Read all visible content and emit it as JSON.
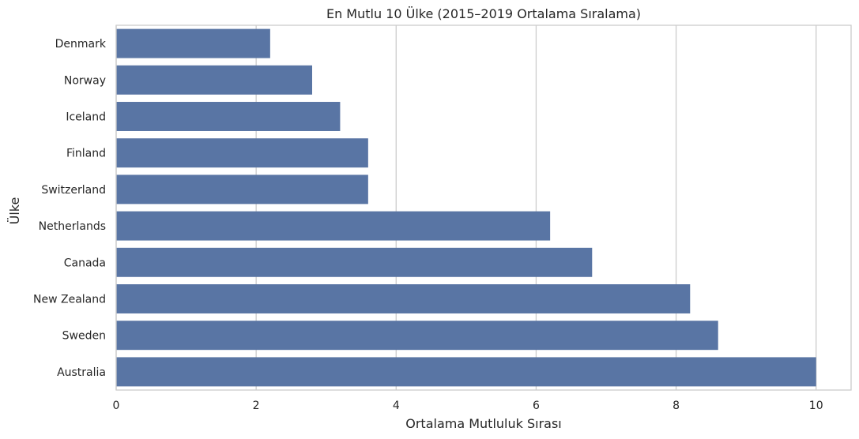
{
  "chart_data": {
    "type": "bar",
    "orientation": "horizontal",
    "title": "En Mutlu 10 Ülke (2015–2019 Ortalama Sıralama)",
    "xlabel": "Ortalama Mutluluk Sırası",
    "ylabel": "Ülke",
    "categories": [
      "Denmark",
      "Norway",
      "Iceland",
      "Finland",
      "Switzerland",
      "Netherlands",
      "Canada",
      "New Zealand",
      "Sweden",
      "Australia"
    ],
    "values": [
      2.2,
      2.8,
      3.2,
      3.6,
      3.6,
      6.2,
      6.8,
      8.2,
      8.6,
      10.0
    ],
    "xlim": [
      0,
      10.5
    ],
    "xticks": [
      "0",
      "2",
      "4",
      "6",
      "8",
      "10"
    ],
    "grid": "vertical",
    "bar_color": "#5975a4"
  }
}
